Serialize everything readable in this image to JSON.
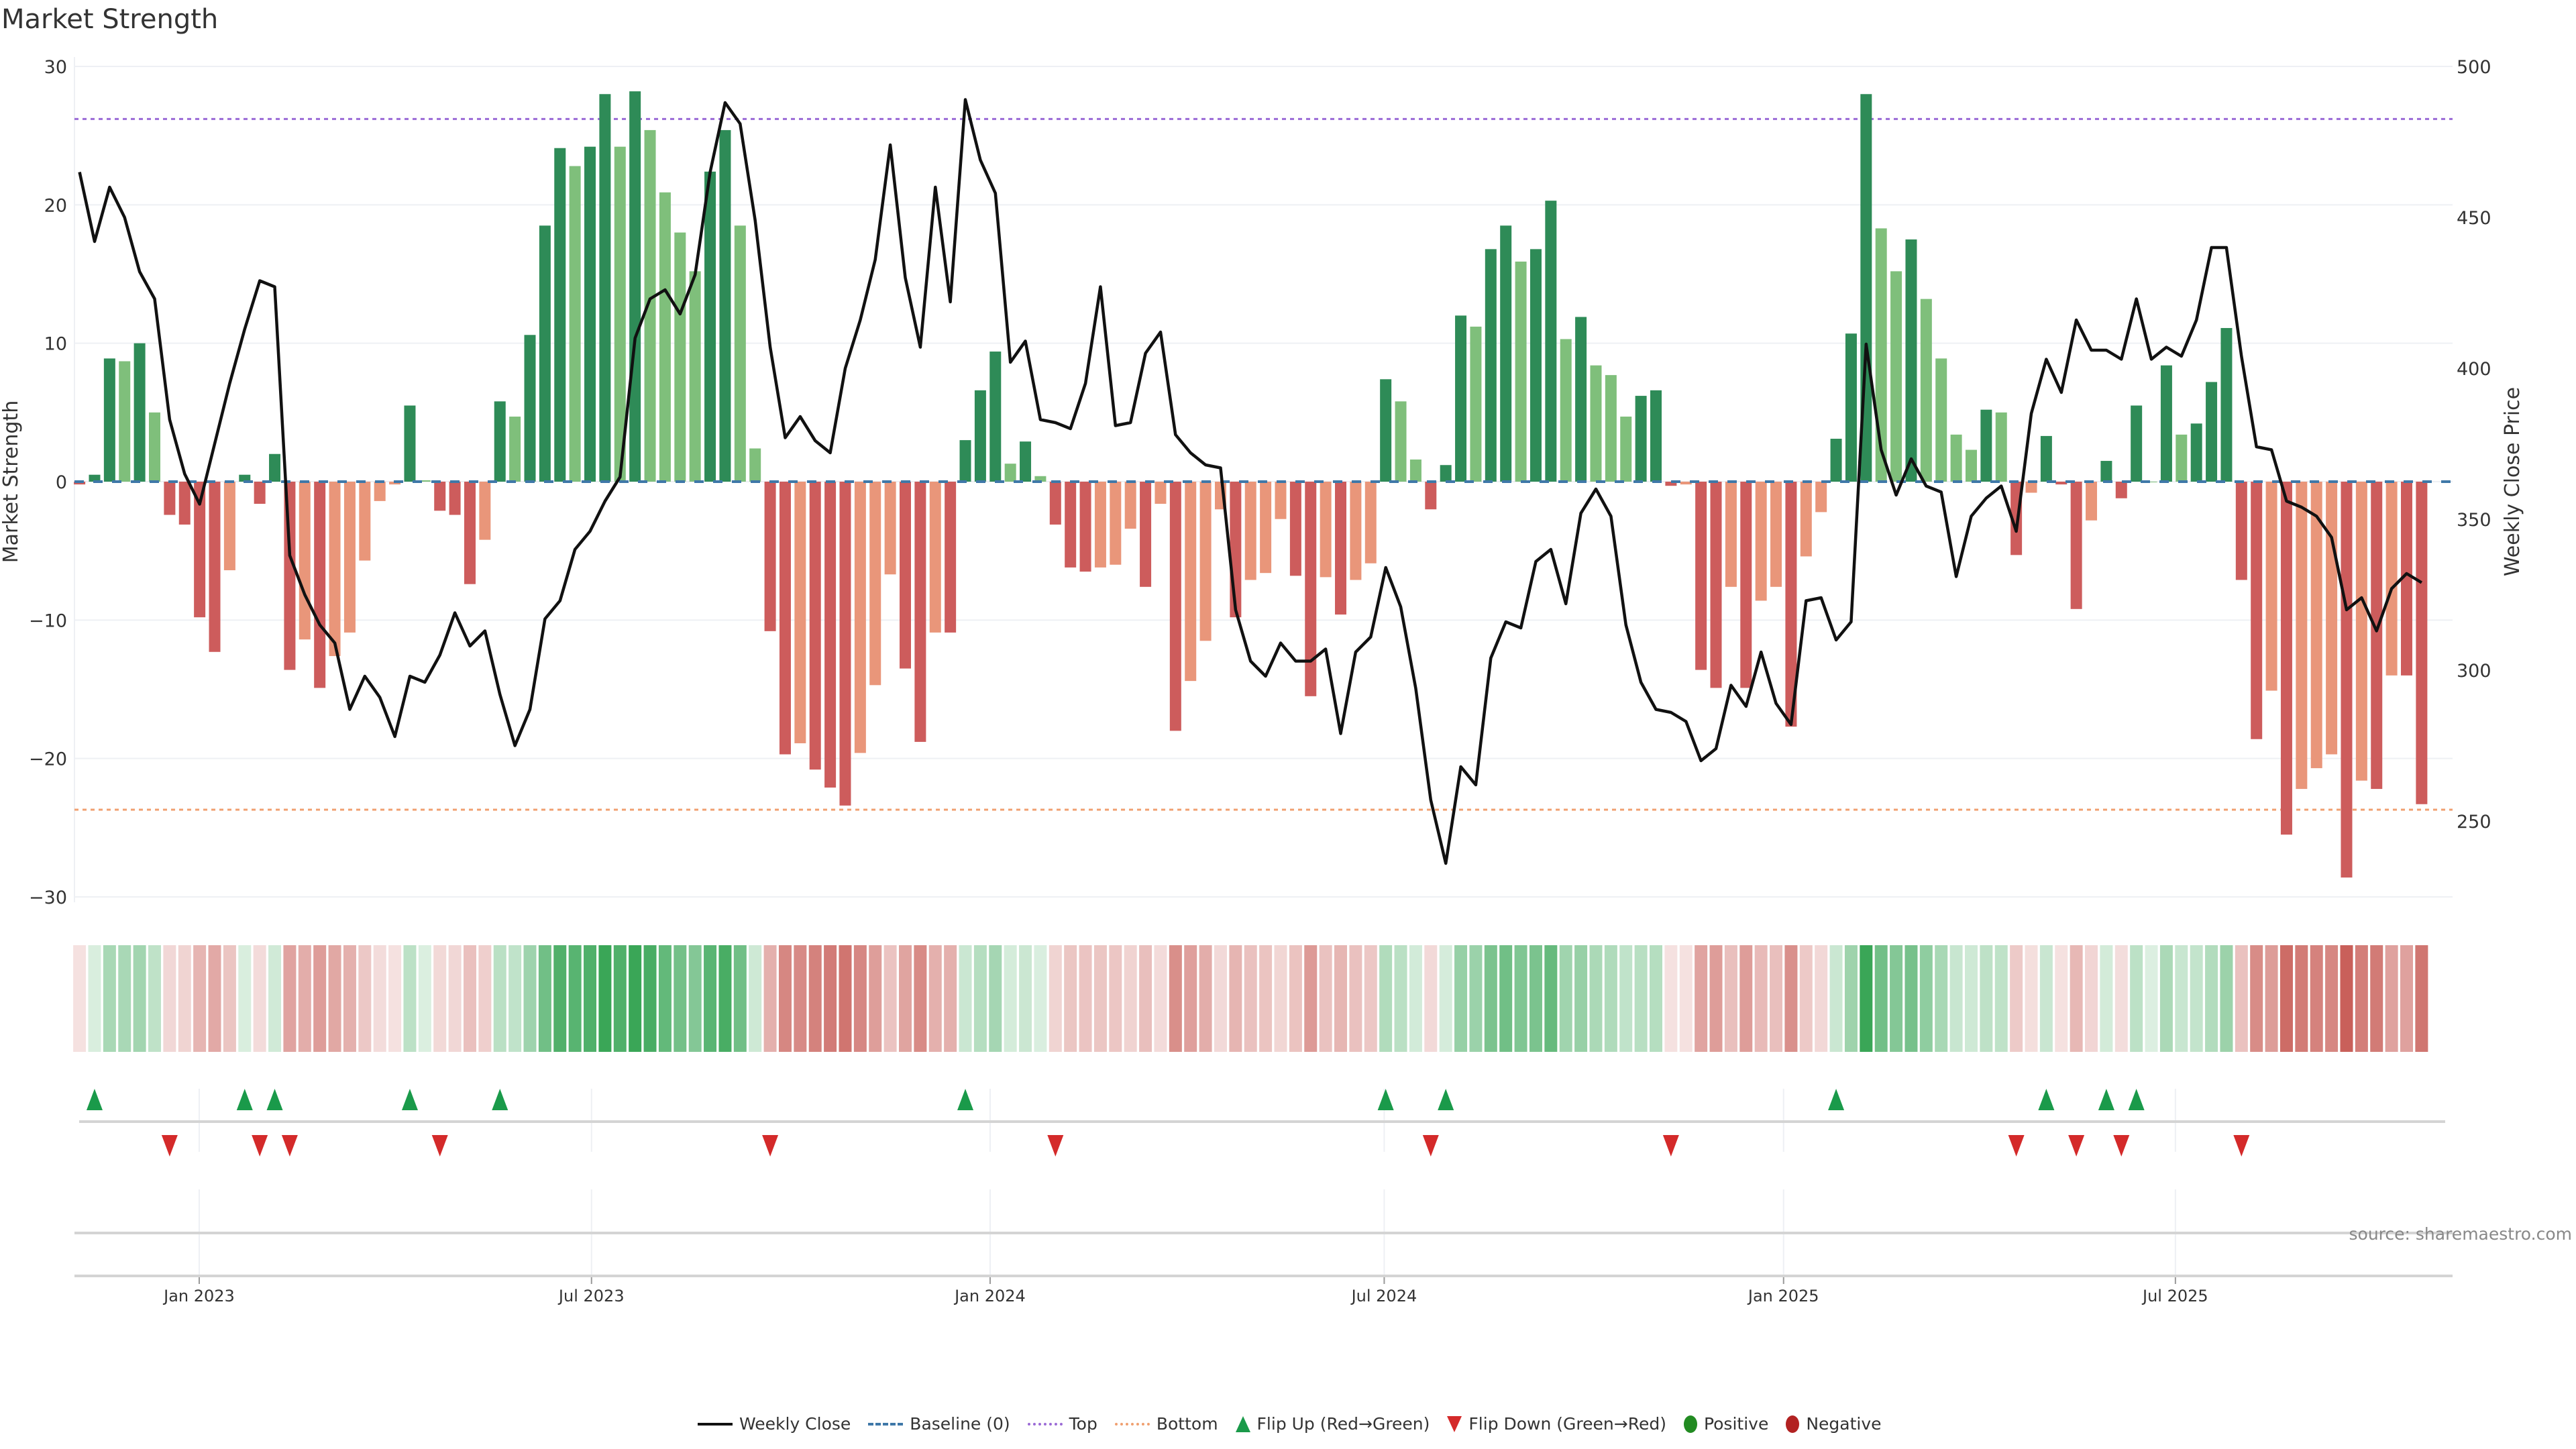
{
  "chart_data": {
    "type": "bar",
    "title": "Market Strength",
    "ylabel": "Market Strength",
    "y2label": "Weekly Close Price",
    "ylim": [
      -30,
      30
    ],
    "y2lim": [
      250,
      500
    ],
    "xlim_week_index": [
      0.66,
      159.1
    ],
    "yticks": [
      {
        "v": 30,
        "label": "30"
      },
      {
        "v": 20,
        "label": "20"
      },
      {
        "v": 10,
        "label": "10"
      },
      {
        "v": 0,
        "label": "0"
      },
      {
        "v": -10,
        "label": "−10"
      },
      {
        "v": -20,
        "label": "−20"
      },
      {
        "v": -30,
        "label": "−30"
      }
    ],
    "y2ticks": [
      {
        "v": 500,
        "label": "500"
      },
      {
        "v": 450,
        "label": "450"
      },
      {
        "v": 400,
        "label": "400"
      },
      {
        "v": 350,
        "label": "350"
      },
      {
        "v": 300,
        "label": "300"
      },
      {
        "v": 250,
        "label": "250"
      }
    ],
    "xticks": [
      {
        "week_index": 8.97,
        "label": "Jan 2023"
      },
      {
        "week_index": 35.1,
        "label": "Jul 2023"
      },
      {
        "week_index": 61.65,
        "label": "Jan 2024"
      },
      {
        "week_index": 87.9,
        "label": "Jul 2024"
      },
      {
        "week_index": 114.5,
        "label": "Jan 2025"
      },
      {
        "week_index": 140.6,
        "label": "Jul 2025"
      }
    ],
    "grid": true,
    "top_level": 26.2,
    "bottom_level": -23.7,
    "baseline": 0,
    "strength": [
      -0.2,
      0.5,
      8.9,
      8.7,
      10,
      5,
      -2.4,
      -3.1,
      -9.8,
      -12.3,
      -6.4,
      0.5,
      -1.6,
      2,
      -13.6,
      -11.4,
      -14.9,
      -12.6,
      -10.9,
      -5.7,
      -1.4,
      -0.2,
      5.5,
      0.1,
      -2.1,
      -2.4,
      -7.4,
      -4.2,
      5.8,
      4.7,
      10.6,
      18.5,
      24.1,
      22.8,
      24.2,
      28,
      24.2,
      28.2,
      25.4,
      20.9,
      18,
      15.2,
      22.4,
      25.4,
      18.5,
      2.4,
      -10.8,
      -19.7,
      -18.9,
      -20.8,
      -22.1,
      -23.4,
      -19.6,
      -14.7,
      -6.7,
      -13.5,
      -18.8,
      -10.9,
      -10.9,
      3,
      6.6,
      9.4,
      1.3,
      2.9,
      0.4,
      -3.1,
      -6.2,
      -6.5,
      -6.2,
      -6,
      -3.4,
      -7.6,
      -1.6,
      -18,
      -14.4,
      -11.5,
      -2,
      -9.8,
      -7.1,
      -6.6,
      -2.7,
      -6.8,
      -15.5,
      -6.9,
      -9.6,
      -7.1,
      -5.9,
      7.4,
      5.8,
      1.6,
      -2,
      1.2,
      12,
      11.2,
      16.8,
      18.5,
      15.9,
      16.8,
      20.3,
      10.3,
      11.9,
      8.4,
      7.7,
      4.7,
      6.2,
      6.6,
      -0.3,
      -0.2,
      -13.6,
      -14.9,
      -7.6,
      -14.9,
      -8.6,
      -7.6,
      -17.7,
      -5.4,
      -2.2,
      3.1,
      10.7,
      28,
      18.3,
      15.2,
      17.5,
      13.2,
      8.9,
      3.4,
      2.3,
      5.2,
      5,
      -5.3,
      -0.8,
      3.3,
      -0.2,
      -9.2,
      -2.8,
      1.5,
      -1.2,
      5.5,
      0,
      8.4,
      3.4,
      4.2,
      7.2,
      11.1,
      -7.1,
      -18.6,
      -15.1,
      -25.5,
      -22.2,
      -20.7,
      -19.7,
      -28.6,
      -21.6,
      -22.2,
      -14,
      -14,
      -23.3
    ],
    "weekly_close": [
      465,
      442,
      460,
      450,
      432,
      423,
      383,
      365,
      355,
      375,
      395,
      413,
      429,
      427,
      338,
      325,
      315,
      309,
      287,
      298,
      291,
      278,
      298,
      296,
      305,
      319,
      308,
      313,
      292,
      275,
      287,
      317,
      323,
      340,
      346,
      356,
      364,
      410,
      423,
      426,
      418,
      431,
      465,
      488,
      481,
      449,
      407,
      377,
      384,
      376,
      372,
      400,
      416,
      436,
      474,
      430,
      407,
      460,
      422,
      489,
      469,
      458,
      402,
      409,
      383,
      382,
      380,
      395,
      427,
      381,
      382,
      405,
      412,
      378,
      372,
      368,
      367,
      320,
      303,
      298,
      309,
      303,
      303,
      307,
      279,
      306,
      311,
      334,
      321,
      294,
      257,
      236,
      268,
      262,
      304,
      316,
      314,
      336,
      340,
      322,
      352,
      360,
      351,
      315,
      296,
      287,
      286,
      283,
      270,
      274,
      295,
      288,
      306,
      289,
      282,
      323,
      324,
      310,
      316,
      408,
      373,
      358,
      370,
      361,
      359,
      331,
      351,
      357,
      361,
      346,
      385,
      403,
      392,
      416,
      406,
      406,
      403,
      423,
      403,
      407,
      404,
      416,
      440,
      440,
      404,
      374,
      373,
      356,
      354,
      351,
      344,
      320,
      324,
      313,
      327,
      332,
      329
    ],
    "flip_up_weeks": [
      2,
      12,
      14,
      23,
      29,
      60,
      88,
      92,
      118,
      132,
      136,
      138
    ],
    "flip_down_weeks": [
      7,
      13,
      15,
      25,
      47,
      66,
      91,
      107,
      130,
      134,
      137,
      145
    ],
    "legend": {
      "placement": "bottom-center",
      "weekly_close": "Weekly Close",
      "baseline": "Baseline (0)",
      "top": "Top",
      "bottom": "Bottom",
      "flip_up": "Flip Up (Red→Green)",
      "flip_down": "Flip Down (Green→Red)",
      "positive": "Positive",
      "negative": "Negative"
    },
    "source": "source: sharemaestro.com"
  },
  "colors": {
    "pos_rising": "#2e8b57",
    "pos_falling": "#7fbf7b",
    "neg_falling": "#cd5c5c",
    "neg_rising": "#e9967a",
    "heat_pos": "#3aa657",
    "heat_neg": "#c9605a",
    "line": "#111111",
    "baseline": "#3f78a8",
    "top": "#9b6bd6",
    "bottom": "#f0a070",
    "flip_up": "#1a9a4a",
    "flip_down": "#d42a2a"
  }
}
